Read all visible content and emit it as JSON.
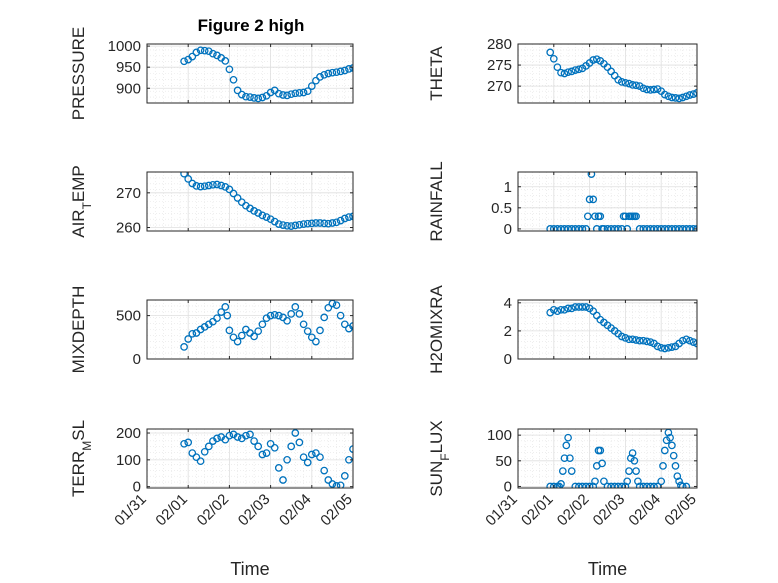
{
  "figure": {
    "title": "Figure 2 high",
    "marker_color": "#0072BD",
    "axis_color": "#262626",
    "grid_color": "#dfdfdf"
  },
  "chart_data": [
    {
      "type": "scatter",
      "title": "Figure 2 high",
      "ylabel": "PRESSURE",
      "ylabel_sub": "",
      "ylabel_post": "",
      "ylim": [
        865,
        1005
      ],
      "yticks": [
        900,
        950,
        1000
      ],
      "xlim": [
        0,
        5
      ],
      "xticks": [
        0,
        1,
        2,
        3,
        4,
        5
      ],
      "xticklabels": [
        "01/31",
        "02/01",
        "02/02",
        "02/03",
        "02/04",
        "02/05"
      ],
      "show_xticklabels": false,
      "xlabel": "",
      "x": [
        0.9,
        1.0,
        1.1,
        1.2,
        1.3,
        1.4,
        1.5,
        1.6,
        1.7,
        1.8,
        1.9,
        2.0,
        2.1,
        2.2,
        2.3,
        2.4,
        2.5,
        2.6,
        2.7,
        2.8,
        2.9,
        3.0,
        3.1,
        3.2,
        3.3,
        3.4,
        3.5,
        3.6,
        3.7,
        3.8,
        3.9,
        4.0,
        4.1,
        4.2,
        4.3,
        4.4,
        4.5,
        4.6,
        4.7,
        4.8,
        4.9,
        5.0
      ],
      "y": [
        964,
        968,
        975,
        985,
        990,
        989,
        988,
        982,
        978,
        972,
        965,
        945,
        920,
        895,
        885,
        880,
        879,
        877,
        876,
        878,
        882,
        890,
        895,
        887,
        884,
        883,
        886,
        888,
        889,
        890,
        893,
        905,
        918,
        927,
        932,
        935,
        937,
        938,
        940,
        942,
        946,
        948
      ]
    },
    {
      "type": "scatter",
      "title": "",
      "ylabel": "THETA",
      "ylabel_sub": "",
      "ylabel_post": "",
      "ylim": [
        266,
        280
      ],
      "yticks": [
        270,
        275,
        280
      ],
      "xlim": [
        0,
        5
      ],
      "xticks": [
        0,
        1,
        2,
        3,
        4,
        5
      ],
      "xticklabels": [
        "01/31",
        "02/01",
        "02/02",
        "02/03",
        "02/04",
        "02/05"
      ],
      "show_xticklabels": false,
      "xlabel": "",
      "x": [
        0.9,
        1.0,
        1.1,
        1.2,
        1.3,
        1.4,
        1.5,
        1.6,
        1.7,
        1.8,
        1.9,
        2.0,
        2.1,
        2.2,
        2.3,
        2.4,
        2.5,
        2.6,
        2.7,
        2.8,
        2.9,
        3.0,
        3.1,
        3.2,
        3.3,
        3.4,
        3.5,
        3.6,
        3.7,
        3.8,
        3.9,
        4.0,
        4.1,
        4.2,
        4.3,
        4.4,
        4.5,
        4.6,
        4.7,
        4.8,
        4.9,
        5.0
      ],
      "y": [
        278,
        276.5,
        274.5,
        273.2,
        273,
        273.3,
        273.5,
        273.8,
        274,
        274.2,
        274.8,
        275.5,
        276.2,
        276.4,
        276,
        275.3,
        274.5,
        273.5,
        272.5,
        271.5,
        271,
        270.8,
        270.6,
        270.3,
        270.2,
        270,
        269.5,
        269.2,
        269.1,
        269.2,
        269.3,
        268.8,
        268,
        267.6,
        267.3,
        267.2,
        267.1,
        267.3,
        267.6,
        267.9,
        268.1,
        268.4
      ]
    },
    {
      "type": "scatter",
      "title": "",
      "ylabel": "AIR",
      "ylabel_sub": "T",
      "ylabel_post": "EMP",
      "ylim": [
        259,
        276
      ],
      "yticks": [
        260,
        270
      ],
      "xlim": [
        0,
        5
      ],
      "xticks": [
        0,
        1,
        2,
        3,
        4,
        5
      ],
      "xticklabels": [
        "01/31",
        "02/01",
        "02/02",
        "02/03",
        "02/04",
        "02/05"
      ],
      "show_xticklabels": false,
      "xlabel": "",
      "x": [
        0.9,
        1.0,
        1.1,
        1.2,
        1.3,
        1.4,
        1.5,
        1.6,
        1.7,
        1.8,
        1.9,
        2.0,
        2.1,
        2.2,
        2.3,
        2.4,
        2.5,
        2.6,
        2.7,
        2.8,
        2.9,
        3.0,
        3.1,
        3.2,
        3.3,
        3.4,
        3.5,
        3.6,
        3.7,
        3.8,
        3.9,
        4.0,
        4.1,
        4.2,
        4.3,
        4.4,
        4.5,
        4.6,
        4.7,
        4.8,
        4.9,
        5.0
      ],
      "y": [
        275.5,
        274,
        272.7,
        272,
        271.8,
        271.9,
        272.1,
        272.3,
        272.4,
        272.1,
        271.7,
        271,
        269.8,
        268.5,
        267.3,
        266.3,
        265.5,
        264.8,
        264.2,
        263.5,
        263,
        262.4,
        261.7,
        261,
        260.7,
        260.5,
        260.4,
        260.6,
        260.8,
        261,
        261.1,
        261.2,
        261.3,
        261.3,
        261.2,
        261.1,
        261.3,
        261.5,
        262,
        262.6,
        263,
        263.2
      ]
    },
    {
      "type": "scatter",
      "title": "",
      "ylabel": "RAINFALL",
      "ylabel_sub": "",
      "ylabel_post": "",
      "ylim": [
        -0.05,
        1.35
      ],
      "yticks": [
        0,
        0.5,
        1
      ],
      "xlim": [
        0,
        5
      ],
      "xticks": [
        0,
        1,
        2,
        3,
        4,
        5
      ],
      "xticklabels": [
        "01/31",
        "02/01",
        "02/02",
        "02/03",
        "02/04",
        "02/05"
      ],
      "show_xticklabels": false,
      "xlabel": "",
      "x": [
        0.9,
        1.0,
        1.1,
        1.2,
        1.3,
        1.4,
        1.5,
        1.6,
        1.7,
        1.8,
        1.9,
        1.95,
        2.0,
        2.05,
        2.1,
        2.15,
        2.2,
        2.25,
        2.3,
        2.35,
        2.4,
        2.5,
        2.6,
        2.7,
        2.8,
        2.9,
        2.95,
        3.0,
        3.05,
        3.1,
        3.15,
        3.2,
        3.25,
        3.3,
        3.4,
        3.5,
        3.6,
        3.7,
        3.8,
        3.9,
        4.0,
        4.1,
        4.2,
        4.3,
        4.4,
        4.5,
        4.6,
        4.7,
        4.8,
        4.9,
        5.0
      ],
      "y": [
        0,
        0,
        0,
        0,
        0,
        0,
        0,
        0,
        0,
        0,
        0,
        0.3,
        0.7,
        1.3,
        0.7,
        0.3,
        0,
        0.3,
        0.3,
        0,
        0,
        0,
        0,
        0,
        0,
        0,
        0.3,
        0.3,
        0,
        0.3,
        0.3,
        0.3,
        0.3,
        0.3,
        0,
        0,
        0,
        0,
        0,
        0,
        0,
        0,
        0,
        0,
        0,
        0,
        0,
        0,
        0,
        0,
        0
      ]
    },
    {
      "type": "scatter",
      "title": "",
      "ylabel": "MIXDEPTH",
      "ylabel_sub": "",
      "ylabel_post": "",
      "ylim": [
        0,
        680
      ],
      "yticks": [
        0,
        500
      ],
      "xlim": [
        0,
        5
      ],
      "xticks": [
        0,
        1,
        2,
        3,
        4,
        5
      ],
      "xticklabels": [
        "01/31",
        "02/01",
        "02/02",
        "02/03",
        "02/04",
        "02/05"
      ],
      "show_xticklabels": false,
      "xlabel": "",
      "x": [
        0.9,
        1.0,
        1.1,
        1.2,
        1.3,
        1.4,
        1.5,
        1.6,
        1.7,
        1.8,
        1.9,
        1.95,
        2.0,
        2.1,
        2.2,
        2.3,
        2.4,
        2.5,
        2.6,
        2.7,
        2.8,
        2.9,
        3.0,
        3.1,
        3.2,
        3.3,
        3.4,
        3.5,
        3.6,
        3.7,
        3.8,
        3.9,
        4.0,
        4.1,
        4.2,
        4.3,
        4.4,
        4.5,
        4.6,
        4.7,
        4.8,
        4.9,
        5.0
      ],
      "y": [
        140,
        230,
        290,
        300,
        340,
        370,
        400,
        430,
        470,
        540,
        600,
        500,
        330,
        250,
        200,
        270,
        340,
        300,
        260,
        320,
        400,
        470,
        500,
        510,
        500,
        480,
        440,
        520,
        600,
        520,
        400,
        320,
        250,
        200,
        330,
        480,
        590,
        640,
        620,
        500,
        400,
        350,
        380
      ]
    },
    {
      "type": "scatter",
      "title": "",
      "ylabel": "H2OMIXRA",
      "ylabel_sub": "",
      "ylabel_post": "",
      "ylim": [
        0,
        4.2
      ],
      "yticks": [
        0,
        2,
        4
      ],
      "xlim": [
        0,
        5
      ],
      "xticks": [
        0,
        1,
        2,
        3,
        4,
        5
      ],
      "xticklabels": [
        "01/31",
        "02/01",
        "02/02",
        "02/03",
        "02/04",
        "02/05"
      ],
      "show_xticklabels": false,
      "xlabel": "",
      "x": [
        0.9,
        1.0,
        1.1,
        1.2,
        1.3,
        1.4,
        1.5,
        1.6,
        1.7,
        1.8,
        1.9,
        2.0,
        2.1,
        2.2,
        2.3,
        2.4,
        2.5,
        2.6,
        2.7,
        2.8,
        2.9,
        3.0,
        3.1,
        3.2,
        3.3,
        3.4,
        3.5,
        3.6,
        3.7,
        3.8,
        3.9,
        4.0,
        4.1,
        4.2,
        4.3,
        4.4,
        4.5,
        4.6,
        4.7,
        4.8,
        4.9,
        5.0
      ],
      "y": [
        3.3,
        3.5,
        3.4,
        3.5,
        3.5,
        3.6,
        3.6,
        3.7,
        3.7,
        3.7,
        3.7,
        3.6,
        3.4,
        3.1,
        2.8,
        2.6,
        2.4,
        2.2,
        2.0,
        1.8,
        1.6,
        1.5,
        1.4,
        1.4,
        1.35,
        1.3,
        1.3,
        1.25,
        1.2,
        1.1,
        0.9,
        0.8,
        0.75,
        0.8,
        0.85,
        0.9,
        1.1,
        1.3,
        1.4,
        1.3,
        1.2,
        1.1
      ]
    },
    {
      "type": "scatter",
      "title": "",
      "ylabel": "TERR",
      "ylabel_sub": "M",
      "ylabel_post": "SL",
      "ylim": [
        -5,
        215
      ],
      "yticks": [
        0,
        100,
        200
      ],
      "xlim": [
        0,
        5
      ],
      "xticks": [
        0,
        1,
        2,
        3,
        4,
        5
      ],
      "xticklabels": [
        "01/31",
        "02/01",
        "02/02",
        "02/03",
        "02/04",
        "02/05"
      ],
      "show_xticklabels": true,
      "xlabel": "Time",
      "x": [
        0.9,
        1.0,
        1.1,
        1.2,
        1.3,
        1.4,
        1.5,
        1.6,
        1.7,
        1.8,
        1.9,
        2.0,
        2.1,
        2.2,
        2.3,
        2.4,
        2.5,
        2.6,
        2.7,
        2.8,
        2.9,
        3.0,
        3.1,
        3.2,
        3.3,
        3.4,
        3.5,
        3.6,
        3.7,
        3.8,
        3.9,
        4.0,
        4.1,
        4.2,
        4.3,
        4.4,
        4.5,
        4.6,
        4.7,
        4.8,
        4.9,
        5.0
      ],
      "y": [
        160,
        165,
        125,
        110,
        95,
        130,
        150,
        170,
        180,
        185,
        175,
        190,
        195,
        185,
        180,
        190,
        195,
        170,
        150,
        120,
        125,
        160,
        145,
        70,
        25,
        100,
        150,
        200,
        165,
        110,
        90,
        120,
        125,
        110,
        60,
        25,
        10,
        3,
        5,
        40,
        100,
        140
      ]
    },
    {
      "type": "scatter",
      "title": "",
      "ylabel": "SUN",
      "ylabel_sub": "F",
      "ylabel_post": "LUX",
      "ylim": [
        -3,
        112
      ],
      "yticks": [
        0,
        50,
        100
      ],
      "xlim": [
        0,
        5
      ],
      "xticks": [
        0,
        1,
        2,
        3,
        4,
        5
      ],
      "xticklabels": [
        "01/31",
        "02/01",
        "02/02",
        "02/03",
        "02/04",
        "02/05"
      ],
      "show_xticklabels": true,
      "xlabel": "Time",
      "x": [
        0.9,
        1.0,
        1.1,
        1.15,
        1.2,
        1.25,
        1.3,
        1.35,
        1.4,
        1.45,
        1.5,
        1.6,
        1.7,
        1.8,
        1.9,
        2.0,
        2.1,
        2.15,
        2.2,
        2.25,
        2.3,
        2.35,
        2.4,
        2.5,
        2.6,
        2.7,
        2.8,
        2.9,
        3.0,
        3.05,
        3.1,
        3.15,
        3.2,
        3.25,
        3.3,
        3.35,
        3.4,
        3.5,
        3.6,
        3.7,
        3.8,
        3.9,
        4.0,
        4.05,
        4.1,
        4.15,
        4.2,
        4.25,
        4.3,
        4.35,
        4.4,
        4.45,
        4.5,
        4.55,
        4.6,
        4.7
      ],
      "y": [
        0,
        0,
        0,
        0,
        5,
        30,
        55,
        80,
        95,
        55,
        30,
        0,
        0,
        0,
        0,
        0,
        0,
        10,
        40,
        70,
        70,
        45,
        10,
        0,
        0,
        0,
        0,
        0,
        0,
        10,
        30,
        55,
        65,
        50,
        30,
        10,
        0,
        0,
        0,
        0,
        0,
        0,
        10,
        40,
        70,
        90,
        105,
        95,
        80,
        60,
        40,
        20,
        10,
        2,
        0,
        0
      ]
    }
  ]
}
